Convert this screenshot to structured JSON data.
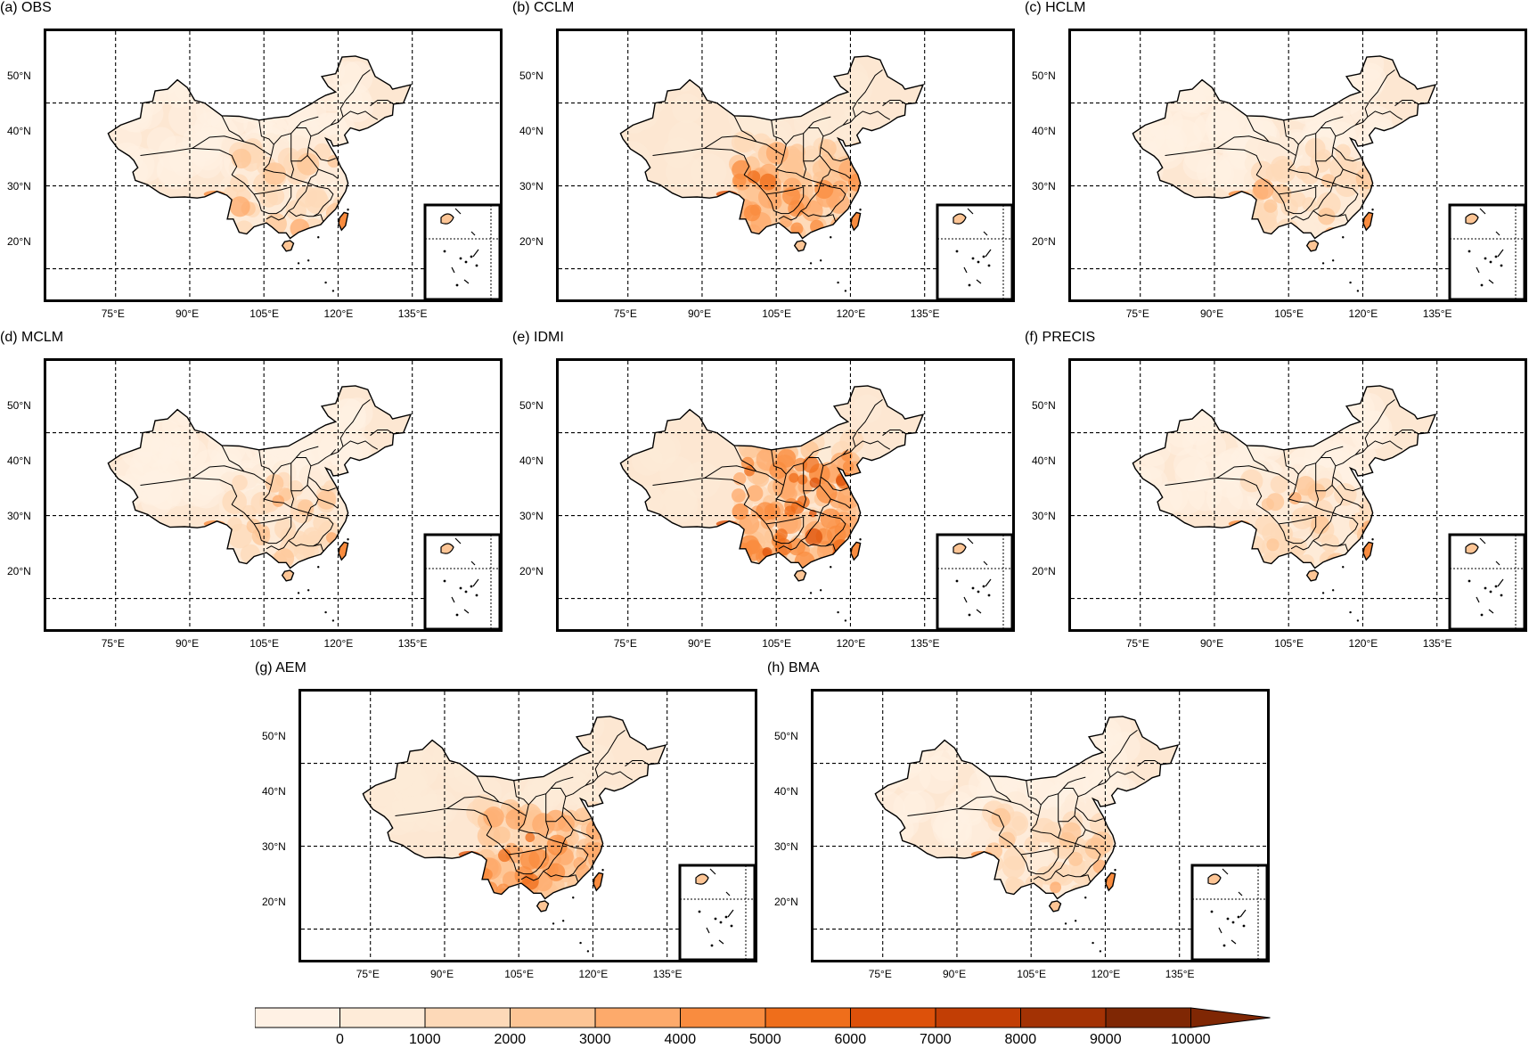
{
  "figure": {
    "panels": [
      {
        "id": "obs",
        "title": "(a) OBS",
        "palette": "light"
      },
      {
        "id": "cclm",
        "title": "(b) CCLM",
        "palette": "mid"
      },
      {
        "id": "hclm",
        "title": "(c) HCLM",
        "palette": "light"
      },
      {
        "id": "mclm",
        "title": "(d) MCLM",
        "palette": "light"
      },
      {
        "id": "idmi",
        "title": "(e) IDMI",
        "palette": "dark"
      },
      {
        "id": "precis",
        "title": "(f) PRECIS",
        "palette": "light"
      },
      {
        "id": "aem",
        "title": "(g) AEM",
        "palette": "mid"
      },
      {
        "id": "bma",
        "title": "(h) BMA",
        "palette": "light"
      }
    ],
    "lat_labels": [
      "50°N",
      "40°N",
      "30°N",
      "20°N"
    ],
    "lon_labels": [
      "75°E",
      "90°E",
      "105°E",
      "120°E",
      "135°E"
    ],
    "colorbar": {
      "tick_labels": [
        "0",
        "1000",
        "2000",
        "3000",
        "4000",
        "5000",
        "6000",
        "7000",
        "8000",
        "9000",
        "10000"
      ],
      "colors": [
        "#fff1e4",
        "#feebd8",
        "#fdd9b8",
        "#fdc595",
        "#fdaa6b",
        "#f98c3f",
        "#ef6e1b",
        "#dd510a",
        "#c23e05",
        "#a33204",
        "#7f2704"
      ]
    }
  }
}
